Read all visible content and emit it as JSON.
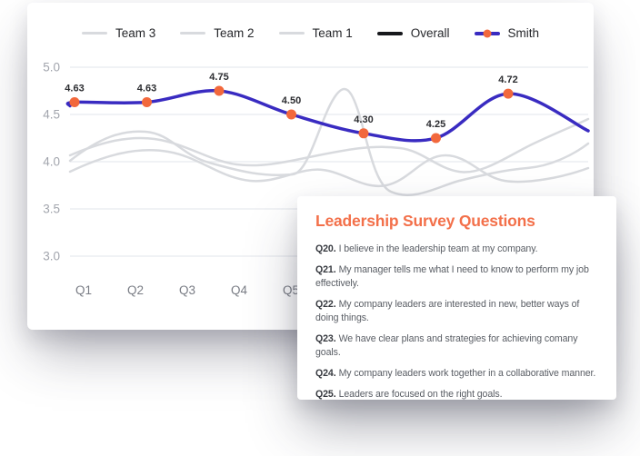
{
  "chart_card": {
    "legend": {
      "items": [
        {
          "label": "Team 3",
          "series": "team-3"
        },
        {
          "label": "Team 2",
          "series": "team-2"
        },
        {
          "label": "Team 1",
          "series": "team-1"
        },
        {
          "label": "Overall",
          "series": "overall"
        },
        {
          "label": "Smith",
          "series": "smith"
        }
      ]
    }
  },
  "chart_data": {
    "type": "line",
    "title": "",
    "xlabel": "",
    "ylabel": "",
    "categories_visible": [
      "Q1",
      "Q2",
      "Q3",
      "Q4",
      "Q5"
    ],
    "y_axis": {
      "tick_labels": [
        "5.0",
        "4.5",
        "4.0",
        "3.5",
        "3.0"
      ],
      "min": 3.0,
      "max": 5.0
    },
    "grid": "horizontal",
    "legend_position": "top-center",
    "series": [
      {
        "name": "Team 3",
        "color": "#d8dade",
        "values": null,
        "values_visible": false
      },
      {
        "name": "Team 2",
        "color": "#d8dade",
        "values": null,
        "values_visible": false
      },
      {
        "name": "Team 1",
        "color": "#d8dade",
        "values": null,
        "values_visible": false
      },
      {
        "name": "Overall",
        "color": "#17181c",
        "values": null,
        "values_visible": false
      },
      {
        "name": "Smith",
        "color": "#392bc1",
        "marker": "dot",
        "marker_color": "#f2683c",
        "values": [
          4.63,
          4.63,
          4.75,
          4.5,
          4.3,
          4.25,
          4.72
        ],
        "point_labels": [
          "4.63",
          "4.63",
          "4.75",
          "4.50",
          "4.30",
          "4.25",
          "4.72"
        ]
      }
    ]
  },
  "questions_card": {
    "title": "Leadership Survey Questions",
    "items": [
      {
        "id": "Q20.",
        "text": "I believe in the leadership team at my company."
      },
      {
        "id": "Q21.",
        "text": "My manager tells me what I need to know to perform my job effectively."
      },
      {
        "id": "Q22.",
        "text": "My company leaders are interested in new, better ways of doing things."
      },
      {
        "id": "Q23.",
        "text": "We have clear plans and strategies for achieving comany goals."
      },
      {
        "id": "Q24.",
        "text": "My company leaders work together in a collaborative manner."
      },
      {
        "id": "Q25.",
        "text": "Leaders are focused on the right goals."
      }
    ]
  },
  "colors": {
    "accent_orange": "#f3704a",
    "smith_line": "#392bc1",
    "marker_orange": "#f2683c",
    "team_line": "#d8dade",
    "overall_line": "#17181c",
    "gridline": "#eceef2"
  }
}
